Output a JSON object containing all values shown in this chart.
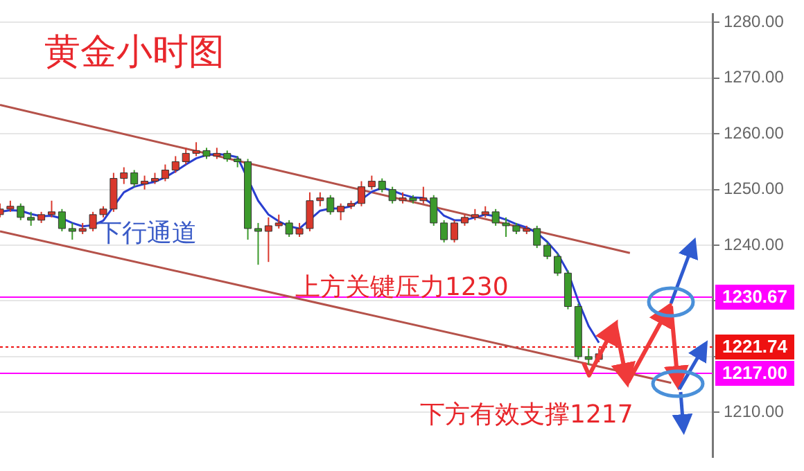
{
  "chart_data": {
    "type": "candlestick",
    "title": "黄金小时图",
    "annotations": [
      "下行通道",
      "上方关键压力1230",
      "下方有效支撑1217"
    ],
    "categories": [
      null,
      null,
      null,
      null,
      null,
      null,
      null,
      null,
      null,
      null,
      null,
      null,
      null,
      null,
      null,
      null,
      null,
      null,
      null,
      null,
      null,
      null,
      null,
      null,
      null,
      null,
      null,
      null,
      null,
      null,
      null,
      null,
      null,
      null,
      null,
      null,
      null,
      null,
      null,
      null,
      null,
      null,
      null,
      null,
      null,
      null,
      null,
      null,
      null,
      null,
      null,
      null,
      null,
      null,
      null,
      null,
      null,
      null,
      null,
      null,
      null,
      null,
      null,
      null,
      null,
      null,
      null,
      null,
      null,
      null
    ],
    "series": [
      {
        "ohlc": [
          [
            1245.5,
            1247.5,
            1245,
            1246.5
          ],
          [
            1246.5,
            1248,
            1246,
            1247
          ],
          [
            1247,
            1247.5,
            1244.5,
            1245
          ],
          [
            1245,
            1246,
            1243.5,
            1244.5
          ],
          [
            1244.5,
            1246,
            1244,
            1245.5
          ],
          [
            1245.5,
            1248,
            1245,
            1246
          ],
          [
            1246,
            1246.5,
            1242.5,
            1243
          ],
          [
            1243,
            1244,
            1241,
            1242.5
          ],
          [
            1242.5,
            1244,
            1242,
            1243
          ],
          [
            1243,
            1246,
            1242.5,
            1245.5
          ],
          [
            1245.5,
            1247,
            1245,
            1246.5
          ],
          [
            1246.5,
            1253,
            1246,
            1252
          ],
          [
            1252,
            1254,
            1251,
            1253
          ],
          [
            1253,
            1253.5,
            1250.5,
            1251
          ],
          [
            1251,
            1252.5,
            1250,
            1251.5
          ],
          [
            1251.5,
            1253,
            1251,
            1252
          ],
          [
            1252,
            1254.5,
            1251.5,
            1253.5
          ],
          [
            1253.5,
            1256,
            1253,
            1255
          ],
          [
            1255,
            1257.5,
            1254.5,
            1256.5
          ],
          [
            1256.5,
            1258.5,
            1256,
            1257
          ],
          [
            1257,
            1257.5,
            1255.5,
            1256
          ],
          [
            1256,
            1257.5,
            1255.5,
            1256.5
          ],
          [
            1256.5,
            1257,
            1255,
            1255.5
          ],
          [
            1255.5,
            1256,
            1254,
            1255
          ],
          [
            1255,
            1255.5,
            1241,
            1243
          ],
          [
            1243,
            1244,
            1236.5,
            1242.5
          ],
          [
            1242.5,
            1245,
            1237,
            1243.5
          ],
          [
            1243.5,
            1245.5,
            1243,
            1244
          ],
          [
            1244,
            1244.5,
            1241.5,
            1242
          ],
          [
            1242,
            1244,
            1241.5,
            1243
          ],
          [
            1243,
            1249.5,
            1242.5,
            1248
          ],
          [
            1248,
            1249.5,
            1247,
            1248.5
          ],
          [
            1248.5,
            1249,
            1245.5,
            1246
          ],
          [
            1246,
            1247.5,
            1244.5,
            1247
          ],
          [
            1247,
            1248,
            1246.5,
            1247.5
          ],
          [
            1247.5,
            1251.5,
            1247,
            1250.5
          ],
          [
            1250.5,
            1252.5,
            1250,
            1251.5
          ],
          [
            1251.5,
            1252,
            1249.5,
            1250
          ],
          [
            1250,
            1250.5,
            1247.5,
            1248
          ],
          [
            1248,
            1249.5,
            1247.5,
            1248.5
          ],
          [
            1248.5,
            1249,
            1247.5,
            1248
          ],
          [
            1248,
            1250.5,
            1247.5,
            1248.5
          ],
          [
            1248.5,
            1249,
            1243.5,
            1244
          ],
          [
            1244,
            1244.5,
            1240.5,
            1241
          ],
          [
            1241,
            1244.5,
            1240.5,
            1244
          ],
          [
            1244,
            1245.5,
            1243.5,
            1245
          ],
          [
            1245,
            1246.5,
            1244.5,
            1245.5
          ],
          [
            1245.5,
            1247,
            1245,
            1246
          ],
          [
            1246,
            1246.5,
            1243.5,
            1244
          ],
          [
            1244,
            1245,
            1241.5,
            1243.5
          ],
          [
            1243.5,
            1244,
            1242,
            1242.5
          ],
          [
            1242.5,
            1243.5,
            1242,
            1243
          ],
          [
            1243,
            1243.5,
            1239.5,
            1240
          ],
          [
            1240,
            1240.5,
            1237.5,
            1238
          ],
          [
            1238,
            1238.5,
            1234.5,
            1235
          ],
          [
            1235,
            1235.5,
            1228.5,
            1229
          ],
          [
            1229,
            1229.5,
            1219.5,
            1220
          ],
          [
            1220,
            1221.5,
            1218.5,
            1219.5
          ],
          [
            1219.5,
            1221.5,
            1219,
            1220.5
          ],
          null,
          null,
          null,
          null,
          null,
          null,
          null,
          null,
          null,
          null,
          null
        ],
        "colors": [
          "#d9382c",
          "#d9382c",
          "#3c9a2c",
          "#3c9a2c",
          "#d9382c",
          "#d9382c",
          "#3c9a2c",
          "#3c9a2c",
          "#d9382c",
          "#d9382c",
          "#d9382c",
          "#d9382c",
          "#d9382c",
          "#3c9a2c",
          "#d9382c",
          "#d9382c",
          "#d9382c",
          "#d9382c",
          "#d9382c",
          "#d9382c",
          "#3c9a2c",
          "#d9382c",
          "#3c9a2c",
          "#3c9a2c",
          "#3c9a2c",
          "#3c9a2c",
          "#d9382c",
          "#d9382c",
          "#3c9a2c",
          "#d9382c",
          "#d9382c",
          "#d9382c",
          "#3c9a2c",
          "#d9382c",
          "#d9382c",
          "#d9382c",
          "#d9382c",
          "#3c9a2c",
          "#3c9a2c",
          "#d9382c",
          "#3c9a2c",
          "#d9382c",
          "#3c9a2c",
          "#3c9a2c",
          "#d9382c",
          "#d9382c",
          "#d9382c",
          "#d9382c",
          "#3c9a2c",
          "#3c9a2c",
          "#3c9a2c",
          "#d9382c",
          "#3c9a2c",
          "#3c9a2c",
          "#3c9a2c",
          "#3c9a2c",
          "#3c9a2c",
          "#3c9a2c",
          "#d9382c",
          null,
          null,
          null,
          null,
          null,
          null,
          null,
          null,
          null,
          null,
          null
        ]
      },
      {
        "type": "line",
        "color": "#2a3fd0",
        "values": [
          1246,
          1246.3,
          1246.2,
          1245.6,
          1245.2,
          1245.3,
          1244.8,
          1244,
          1243.4,
          1243.6,
          1244.4,
          1247,
          1249.5,
          1250.5,
          1251,
          1251.4,
          1252.2,
          1253.3,
          1254.5,
          1255.6,
          1256.2,
          1256.4,
          1256.2,
          1255.8,
          null,
          1248,
          1245.5,
          1244.3,
          1243.4,
          1243,
          1244.6,
          1246.2,
          1246.6,
          1246.6,
          1247,
          1248.2,
          1249.6,
          1250.3,
          1249.8,
          1249.1,
          1248.6,
          1248.5,
          1247.2,
          1245.3,
          1244.5,
          1244.5,
          1245,
          1245.5,
          1245.2,
          1244.6,
          1243.8,
          1243.2,
          1242.2,
          1240.6,
          1238.5,
          1235.2,
          1230,
          1225.5,
          1222.5,
          null,
          null,
          null,
          null,
          null,
          null,
          null,
          null,
          null,
          null,
          null
        ]
      },
      {
        "type": "line",
        "color": "#b5524a",
        "values": [
          1265.2,
          null,
          null,
          null,
          null,
          null,
          null,
          null,
          null,
          null,
          null,
          null,
          null,
          null,
          null,
          null,
          null,
          null,
          null,
          null,
          null,
          null,
          null,
          null,
          null,
          null,
          null,
          null,
          null,
          null,
          null,
          null,
          null,
          null,
          null,
          null,
          null,
          null,
          null,
          null,
          null,
          null,
          null,
          null,
          null,
          null,
          null,
          null,
          null,
          null,
          null,
          null,
          null,
          null,
          null,
          null,
          null,
          null,
          null,
          null,
          null,
          1238.6,
          null,
          null,
          null,
          null,
          null,
          null,
          null,
          null
        ]
      },
      {
        "type": "line",
        "color": "#b5524a",
        "values": [
          1242.5,
          null,
          null,
          null,
          null,
          null,
          null,
          null,
          null,
          null,
          null,
          null,
          null,
          null,
          null,
          null,
          null,
          null,
          null,
          null,
          null,
          null,
          null,
          null,
          null,
          null,
          null,
          null,
          null,
          null,
          null,
          null,
          null,
          null,
          null,
          null,
          null,
          null,
          null,
          null,
          null,
          null,
          null,
          null,
          null,
          null,
          null,
          null,
          null,
          null,
          null,
          null,
          null,
          null,
          null,
          null,
          null,
          null,
          null,
          null,
          null,
          null,
          null,
          null,
          null,
          1215.3,
          null,
          null,
          null,
          null
        ]
      }
    ],
    "ylim": [
      1202,
      1281.5
    ],
    "yticks": [
      {
        "value": 1210,
        "label": "1210.00"
      },
      {
        "value": 1220,
        "label": null
      },
      {
        "value": 1230,
        "label": null
      },
      {
        "value": 1240,
        "label": "1240.00"
      },
      {
        "value": 1250,
        "label": "1250.00"
      },
      {
        "value": 1260,
        "label": "1260.00"
      },
      {
        "value": 1270,
        "label": "1270.00"
      },
      {
        "value": 1280,
        "label": "1280.00"
      }
    ],
    "ref_lines": [
      {
        "axis": "y",
        "value": 1230.67,
        "label": "1230.67",
        "color": "#ff00ff",
        "line_style": "solid"
      },
      {
        "axis": "y",
        "value": 1221.74,
        "label": "1221.74",
        "color": "#ee1111",
        "line_style": "dotted"
      },
      {
        "axis": "y",
        "value": 1217,
        "label": "1217.00",
        "color": "#ff00ff",
        "line_style": "solid"
      }
    ],
    "grid": "y",
    "legend": false,
    "tick_labels": "y"
  }
}
